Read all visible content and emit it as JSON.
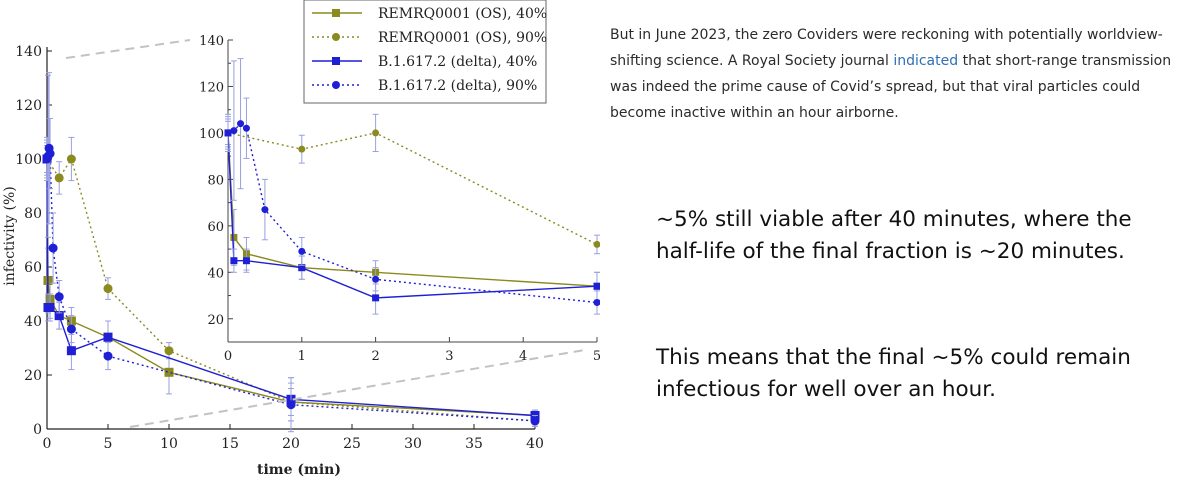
{
  "article": {
    "before_link": "But in June 2023, the zero Coviders were reckoning with potentially worldview-shifting science. A Royal Society journal ",
    "link_text": "indicated",
    "after_link": " that short-range transmission was indeed the prime cause of Covid’s spread, but that viral particles could become inactive within an hour airborne."
  },
  "notes": {
    "first": "~5% still viable after 40 minutes, where the half-life of the final fraction is ~20 minutes.",
    "second": "This means that the final ~5% could remain infectious for well over an hour."
  },
  "colors": {
    "olive": "#8a8a1f",
    "blue": "#1f1fd6",
    "errorbar": "#9aa0e0",
    "zoom_guide": "#c2c2c2"
  },
  "chart_data": {
    "type": "line",
    "xlabel": "time (min)",
    "ylabel": "infectivity (%)",
    "xlim": [
      0,
      40
    ],
    "ylim": [
      0,
      140
    ],
    "xticks": [
      "0",
      "5",
      "10",
      "15",
      "20",
      "25",
      "30",
      "35",
      "40"
    ],
    "yticks": [
      "0",
      "20",
      "40",
      "60",
      "80",
      "100",
      "120",
      "140"
    ],
    "legend_placement": "top, overlapping inset",
    "series": [
      {
        "name": "REMRQ0001 (OS), 40%",
        "style": "solid",
        "marker": "square",
        "color": "olive",
        "x": [
          0,
          0.08,
          0.25,
          1,
          2,
          5,
          10,
          20,
          40
        ],
        "y": [
          100,
          55,
          48,
          42,
          40,
          34,
          21,
          10,
          5
        ],
        "err": [
          6,
          12,
          7,
          5,
          5,
          6,
          8,
          7,
          2
        ]
      },
      {
        "name": "REMRQ0001 (OS), 90%",
        "style": "dotted",
        "marker": "circle",
        "color": "olive",
        "x": [
          0,
          1,
          2,
          5,
          10,
          20,
          40
        ],
        "y": [
          100,
          93,
          100,
          52,
          29,
          10,
          3
        ],
        "err": [
          5,
          6,
          8,
          4,
          3,
          5,
          2
        ]
      },
      {
        "name": "B.1.617.2 (delta), 40%",
        "style": "solid",
        "marker": "square",
        "color": "blue",
        "x": [
          0,
          0.08,
          0.25,
          1,
          2,
          5,
          20,
          40
        ],
        "y": [
          100,
          45,
          45,
          42,
          29,
          34,
          11,
          5
        ],
        "err": [
          7,
          5,
          5,
          5,
          7,
          6,
          8,
          2
        ]
      },
      {
        "name": "B.1.617.2 (delta), 90%",
        "style": "dotted",
        "marker": "circle",
        "color": "blue",
        "x": [
          0,
          0.08,
          0.17,
          0.25,
          0.5,
          1,
          2,
          5,
          20,
          40
        ],
        "y": [
          100,
          101,
          104,
          102,
          67,
          49,
          37,
          27,
          9,
          3
        ],
        "err": [
          8,
          30,
          28,
          13,
          13,
          6,
          5,
          5,
          10,
          2
        ]
      }
    ],
    "inset": {
      "xlim": [
        0,
        5
      ],
      "ylim": [
        10,
        140
      ],
      "xticks": [
        "0",
        "1",
        "2",
        "3",
        "4",
        "5"
      ],
      "yticks": [
        "20",
        "30",
        "40",
        "50",
        "60",
        "70",
        "80",
        "90",
        "100",
        "110",
        "120",
        "130",
        "140"
      ],
      "shows": "zoom of first 5 minutes"
    }
  }
}
